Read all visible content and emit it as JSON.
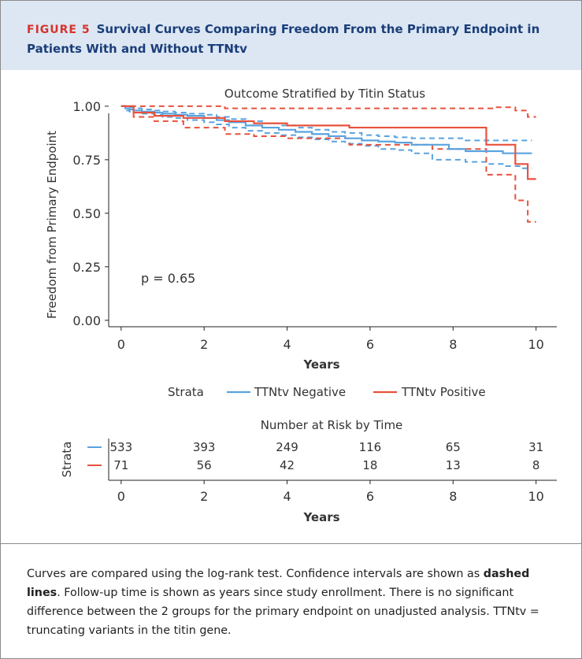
{
  "figure": {
    "label": "FIGURE 5",
    "title": "Survival Curves Comparing Freedom From the Primary Endpoint in Patients With and Without TTNtv"
  },
  "caption": {
    "part1": "Curves are compared using the log-rank test. Confidence intervals are shown as ",
    "bold": "dashed lines",
    "part2": ". Follow-up time is shown as years since study enrollment. There is no significant difference between the 2 groups for the primary endpoint on unadjusted analysis. TTNtv = truncating variants in the titin gene."
  },
  "colors": {
    "negative": "#5aa3df",
    "positive": "#e8513e",
    "header_bg": "#dce7f3",
    "title": "#1b3e7a",
    "label": "#d8322c"
  },
  "chart_data": [
    {
      "type": "line",
      "title": "Outcome Stratified by Titin Status",
      "xlabel": "Years",
      "ylabel": "Freedom from Primary Endpoint",
      "xlim": [
        -0.3,
        10.5
      ],
      "ylim": [
        -0.03,
        1.04
      ],
      "x_ticks": [
        "0",
        "2",
        "4",
        "6",
        "8",
        "10"
      ],
      "x_tick_values": [
        0,
        2,
        4,
        6,
        8,
        10
      ],
      "y_ticks": [
        "0.00",
        "0.25",
        "0.50",
        "0.75",
        "1.00"
      ],
      "y_tick_values": [
        0,
        0.25,
        0.5,
        0.75,
        1
      ],
      "grid": false,
      "annotation": "p = 0.65",
      "legend": {
        "title": "Strata",
        "position": "bottom"
      },
      "series": [
        {
          "name": "TTNtv Negative",
          "color": "#5aa3df",
          "x": [
            0,
            0.1,
            0.2,
            0.3,
            0.5,
            0.8,
            1.0,
            1.3,
            1.6,
            2.0,
            2.3,
            2.6,
            3.0,
            3.4,
            3.8,
            4.2,
            4.6,
            5.0,
            5.4,
            5.8,
            6.2,
            6.6,
            7.0,
            7.5,
            7.9,
            8.3,
            8.8,
            9.2,
            9.6,
            9.9
          ],
          "y": [
            1.0,
            0.99,
            0.985,
            0.98,
            0.975,
            0.97,
            0.965,
            0.96,
            0.955,
            0.945,
            0.935,
            0.925,
            0.91,
            0.9,
            0.89,
            0.88,
            0.87,
            0.86,
            0.85,
            0.84,
            0.835,
            0.83,
            0.82,
            0.82,
            0.8,
            0.79,
            0.79,
            0.78,
            0.78,
            0.78
          ],
          "ci_upper_y": [
            1.0,
            1.0,
            0.995,
            0.99,
            0.985,
            0.98,
            0.975,
            0.97,
            0.965,
            0.96,
            0.95,
            0.94,
            0.93,
            0.92,
            0.91,
            0.9,
            0.89,
            0.88,
            0.875,
            0.865,
            0.86,
            0.855,
            0.85,
            0.85,
            0.85,
            0.84,
            0.84,
            0.84,
            0.84,
            0.84
          ],
          "ci_lower_y": [
            1.0,
            0.98,
            0.975,
            0.97,
            0.965,
            0.96,
            0.95,
            0.945,
            0.935,
            0.925,
            0.915,
            0.9,
            0.885,
            0.875,
            0.865,
            0.855,
            0.845,
            0.835,
            0.825,
            0.815,
            0.8,
            0.795,
            0.78,
            0.75,
            0.75,
            0.74,
            0.73,
            0.72,
            0.71,
            0.71
          ]
        },
        {
          "name": "TTNtv Positive",
          "color": "#e8513e",
          "x": [
            0,
            0.3,
            0.8,
            1.5,
            2.5,
            3.2,
            4.0,
            5.5,
            6.2,
            7.5,
            8.8,
            9.0,
            9.5,
            9.8,
            10.0
          ],
          "y": [
            1.0,
            0.97,
            0.955,
            0.945,
            0.93,
            0.92,
            0.91,
            0.9,
            0.9,
            0.9,
            0.82,
            0.82,
            0.73,
            0.66,
            0.66
          ],
          "ci_upper_y": [
            1.0,
            1.0,
            1.0,
            1.0,
            0.99,
            0.99,
            0.99,
            0.99,
            0.99,
            0.99,
            0.99,
            0.995,
            0.98,
            0.95,
            0.95
          ],
          "ci_lower_y": [
            1.0,
            0.95,
            0.93,
            0.9,
            0.87,
            0.86,
            0.85,
            0.82,
            0.82,
            0.8,
            0.68,
            0.68,
            0.56,
            0.46,
            0.46
          ]
        }
      ]
    },
    {
      "type": "table",
      "title": "Number at Risk by Time",
      "xlabel": "Years",
      "ylabel": "Strata",
      "x_ticks": [
        "0",
        "2",
        "4",
        "6",
        "8",
        "10"
      ],
      "rows": [
        {
          "name": "TTNtv Negative",
          "color": "#5aa3df",
          "values": [
            "533",
            "393",
            "249",
            "116",
            "65",
            "31"
          ]
        },
        {
          "name": "TTNtv Positive",
          "color": "#e8513e",
          "values": [
            "71",
            "56",
            "42",
            "18",
            "13",
            "8"
          ]
        }
      ]
    }
  ]
}
